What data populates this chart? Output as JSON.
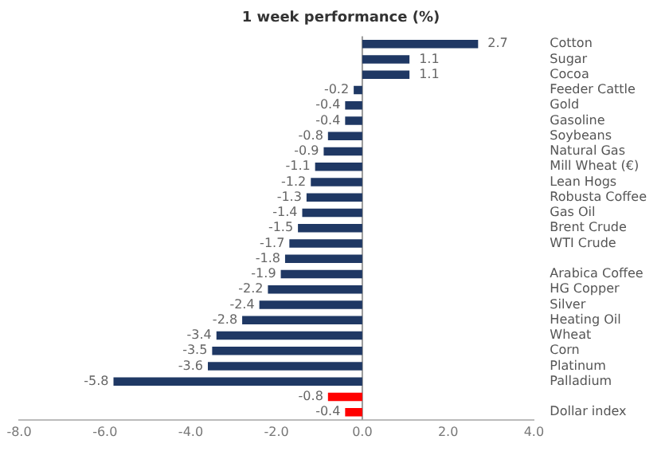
{
  "chart_data": {
    "type": "bar",
    "orientation": "horizontal",
    "title": "1 week performance (%)",
    "categories": [
      "Cotton",
      "Sugar",
      "Cocoa",
      "Feeder Cattle",
      "Gold",
      "Gasoline",
      "Soybeans",
      "Natural Gas",
      "Mill Wheat (€)",
      "Lean Hogs",
      "Robusta Coffee",
      "Gas Oil",
      "Brent Crude",
      "WTI Crude",
      null,
      "Arabica Coffee",
      "HG Copper",
      "Silver",
      "Heating Oil",
      "Wheat",
      "Corn",
      "Platinum",
      "Palladium",
      null,
      "Dollar index"
    ],
    "values": [
      2.7,
      1.1,
      1.1,
      -0.2,
      -0.4,
      -0.4,
      -0.8,
      -0.9,
      -1.1,
      -1.2,
      -1.3,
      -1.4,
      -1.5,
      -1.7,
      -1.8,
      -1.9,
      -2.2,
      -2.4,
      -2.8,
      -3.4,
      -3.5,
      -3.6,
      -5.8,
      -0.8,
      -0.4
    ],
    "colors": [
      "#1f3864",
      "#1f3864",
      "#1f3864",
      "#1f3864",
      "#1f3864",
      "#1f3864",
      "#1f3864",
      "#1f3864",
      "#1f3864",
      "#1f3864",
      "#1f3864",
      "#1f3864",
      "#1f3864",
      "#1f3864",
      "#1f3864",
      "#1f3864",
      "#1f3864",
      "#1f3864",
      "#1f3864",
      "#1f3864",
      "#1f3864",
      "#1f3864",
      "#1f3864",
      "#ff0000",
      "#ff0000"
    ],
    "xlim": [
      -8,
      4
    ],
    "xticks": [
      {
        "value": -8,
        "label": "-8.0"
      },
      {
        "value": -6,
        "label": "-6.0"
      },
      {
        "value": -4,
        "label": "-4.0"
      },
      {
        "value": -2,
        "label": "-2.0"
      },
      {
        "value": 0,
        "label": "0.0"
      },
      {
        "value": 2,
        "label": "2.0"
      },
      {
        "value": 4,
        "label": "4.0"
      }
    ],
    "ref_lines": [
      {
        "axis": "x",
        "value": 0,
        "color": "#999999"
      }
    ],
    "data_labels": true,
    "grid": false,
    "legend": false
  }
}
